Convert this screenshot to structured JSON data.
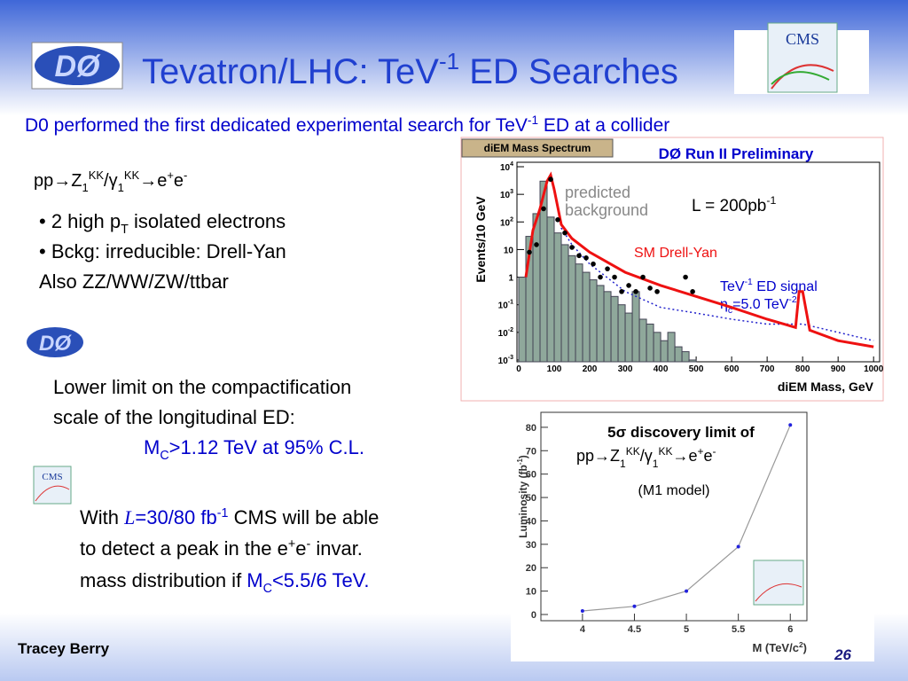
{
  "header": {
    "title_a": "Tevatron/LHC: TeV",
    "title_sup": "-1",
    "title_b": " ED Searches",
    "d0_logo": "DØ",
    "cms_logo": "CMS"
  },
  "subtitle": {
    "a": "D0 performed the first dedicated experimental search for TeV",
    "sup": "-1",
    "b": " ED at a collider"
  },
  "process": [
    "pp",
    "→",
    "Z",
    "1",
    "KK",
    "/γ",
    "1",
    "KK",
    "→",
    "e",
    "+",
    "e",
    "-"
  ],
  "bullets": {
    "b1a": "• 2 high p",
    "b1sub": "T",
    "b1b": " isolated electrons",
    "b2": "• Bckg: irreducible: Drell-Yan",
    "b3": "Also ZZ/WW/ZW/ttbar"
  },
  "d0_result": {
    "d0_logo": "DØ",
    "line1": "Lower limit on the compactification",
    "line2": "scale of the longitudinal ED:",
    "m": "M",
    "msub": "C",
    "limit": ">1.12 TeV at 95% C.L."
  },
  "cms_result": {
    "cms_logo": "CMS",
    "l1a": "With ",
    "lum": "L",
    "l1b": "=30/80 fb",
    "l1sup": "-1",
    "l1c": " CMS will be able",
    "l2a": "to detect a peak in the e",
    "l2sup1": "+",
    "l2b": "e",
    "l2sup2": "-",
    "l2c": " invar.",
    "l3a": "mass distribution if ",
    "m": "M",
    "msub": "C",
    "l3b": "<5.5/6 TeV."
  },
  "footer": {
    "author": "Tracey Berry",
    "page": "26"
  },
  "mass_plot": {
    "type": "histogram",
    "banner": "diEM Mass Spectrum",
    "title": "DØ Run II Preliminary",
    "ylabel": "Events/10 GeV",
    "xlabel": "diEM Mass, GeV",
    "legend_bkg": [
      "predicted",
      "background"
    ],
    "lumi": {
      "a": "L = 200pb",
      "sup": "-1"
    },
    "dy_label": "SM Drell-Yan",
    "signal_label": {
      "a": "TeV",
      "sup": "-1",
      "b": " ED signal",
      "eta": "η",
      "sub": "c",
      "c": "=5.0 TeV",
      "sup2": "-2"
    },
    "log_y": true,
    "xlim": [
      -5,
      1017
    ],
    "ylim": [
      0.00086,
      14500
    ],
    "xticks": [
      0,
      100,
      200,
      300,
      400,
      500,
      600,
      700,
      800,
      900,
      1000
    ],
    "yticks": [
      {
        "value": 0.001,
        "label": "10",
        "sup": "-3"
      },
      {
        "value": 0.01,
        "label": "10",
        "sup": "-2"
      },
      {
        "value": 0.1,
        "label": "10",
        "sup": "-1"
      },
      1,
      10,
      {
        "value": 100,
        "label": "10",
        "sup": "2"
      },
      {
        "value": 1000,
        "label": "10",
        "sup": "3"
      },
      {
        "value": 10000,
        "label": "10",
        "sup": "4"
      }
    ],
    "bins": [
      0,
      20,
      40,
      60,
      80,
      100,
      120,
      140,
      160,
      180,
      200,
      220,
      240,
      260,
      280,
      300,
      320,
      340,
      360,
      380,
      400,
      420,
      440,
      460,
      480,
      500
    ],
    "counts": [
      1,
      30,
      200,
      3000,
      150,
      40,
      15,
      6,
      3,
      1.5,
      0.8,
      0.5,
      0.3,
      0.2,
      0.1,
      0.05,
      0.3,
      0.03,
      0.02,
      0.01,
      0.005,
      0.01,
      0.003,
      0.002,
      0.001
    ],
    "bkg_color": "#8fa89b",
    "drell_yan": {
      "color": "#ee1111",
      "x": [
        20,
        40,
        60,
        80,
        90,
        100,
        120,
        150,
        200,
        300,
        400,
        500,
        600,
        700,
        780,
        790,
        800,
        820,
        900,
        1000
      ],
      "values": [
        1,
        50,
        300,
        3000,
        5000,
        1500,
        80,
        25,
        8,
        1.5,
        0.5,
        0.2,
        0.08,
        0.03,
        0.015,
        0.3,
        0.3,
        0.012,
        0.005,
        0.003
      ]
    },
    "signal": {
      "color": "#2222cc",
      "x": [
        20,
        40,
        60,
        80,
        90,
        100,
        120,
        150,
        200,
        300,
        400,
        500,
        600,
        700,
        800,
        900,
        1000
      ],
      "values": [
        1,
        50,
        300,
        3000,
        5000,
        1500,
        60,
        15,
        3,
        0.3,
        0.08,
        0.05,
        0.03,
        0.02,
        0.02,
        0.01,
        0.005
      ]
    },
    "data": {
      "x": [
        30,
        50,
        70,
        90,
        110,
        130,
        150,
        170,
        190,
        210,
        230,
        250,
        270,
        290,
        310,
        330,
        350,
        370,
        390,
        470,
        490
      ],
      "values": [
        8,
        15,
        300,
        3500,
        120,
        40,
        12,
        6,
        5,
        3,
        1,
        2,
        1,
        0.3,
        0.5,
        0.3,
        1,
        0.4,
        0.3,
        1,
        0.3
      ]
    }
  },
  "lum_plot": {
    "type": "line",
    "title": "5σ discovery limit of",
    "model": "(M1 model)",
    "ylabel": {
      "a": "Luminosity (fb",
      "sup": "-1",
      "b": ")"
    },
    "xlabel": {
      "a": "M (TeV/c",
      "sup": "2",
      "b": ")"
    },
    "x": [
      4,
      4.5,
      5,
      5.5,
      6
    ],
    "values": [
      1.5,
      3.5,
      10,
      29,
      81
    ],
    "color": "#2222dd",
    "line_color": "#999999",
    "xlim": [
      3.6,
      6.16
    ],
    "ylim": [
      -2.65,
      86.4
    ],
    "xticks": [
      4,
      4.5,
      5,
      5.5,
      6
    ],
    "yticks": [
      0,
      10,
      20,
      30,
      40,
      50,
      60,
      70,
      80
    ]
  }
}
